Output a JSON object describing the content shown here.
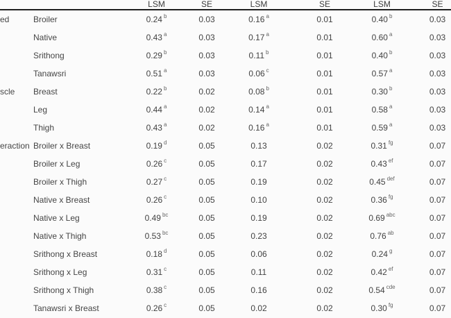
{
  "page": {
    "background": "#fbfbfb",
    "text_color": "#3f3f3f",
    "rule_color": "#1f1f1f"
  },
  "table": {
    "column_headers": [
      "LSM",
      "SE",
      "LSM",
      "SE",
      "LSM",
      "SE"
    ],
    "group_labels_visible_truncated": [
      "ed",
      "scle",
      "eraction"
    ],
    "rows": [
      {
        "group": "ed",
        "item": "Broiler",
        "cells": [
          {
            "v": "0.24",
            "s": "b"
          },
          {
            "v": "0.03"
          },
          {
            "v": "0.16",
            "s": "a"
          },
          {
            "v": "0.01"
          },
          {
            "v": "0.40",
            "s": "b"
          },
          {
            "v": "0.03"
          }
        ]
      },
      {
        "group": "",
        "item": "Native",
        "cells": [
          {
            "v": "0.43",
            "s": "a"
          },
          {
            "v": "0.03"
          },
          {
            "v": "0.17",
            "s": "a"
          },
          {
            "v": "0.01"
          },
          {
            "v": "0.60",
            "s": "a"
          },
          {
            "v": "0.03"
          }
        ]
      },
      {
        "group": "",
        "item": "Srithong",
        "cells": [
          {
            "v": "0.29",
            "s": "b"
          },
          {
            "v": "0.03"
          },
          {
            "v": "0.11",
            "s": "b"
          },
          {
            "v": "0.01"
          },
          {
            "v": "0.40",
            "s": "b"
          },
          {
            "v": "0.03"
          }
        ]
      },
      {
        "group": "",
        "item": "Tanawsri",
        "cells": [
          {
            "v": "0.51",
            "s": "a"
          },
          {
            "v": "0.03"
          },
          {
            "v": "0.06",
            "s": "c"
          },
          {
            "v": "0.01"
          },
          {
            "v": "0.57",
            "s": "a"
          },
          {
            "v": "0.03"
          }
        ]
      },
      {
        "group": "scle",
        "item": "Breast",
        "cells": [
          {
            "v": "0.22",
            "s": "b"
          },
          {
            "v": "0.02"
          },
          {
            "v": "0.08",
            "s": "b"
          },
          {
            "v": "0.01"
          },
          {
            "v": "0.30",
            "s": "b"
          },
          {
            "v": "0.03"
          }
        ]
      },
      {
        "group": "",
        "item": "Leg",
        "cells": [
          {
            "v": "0.44",
            "s": "a"
          },
          {
            "v": "0.02"
          },
          {
            "v": "0.14",
            "s": "a"
          },
          {
            "v": "0.01"
          },
          {
            "v": "0.58",
            "s": "a"
          },
          {
            "v": "0.03"
          }
        ]
      },
      {
        "group": "",
        "item": "Thigh",
        "cells": [
          {
            "v": "0.43",
            "s": "a"
          },
          {
            "v": "0.02"
          },
          {
            "v": "0.16",
            "s": "a"
          },
          {
            "v": "0.01"
          },
          {
            "v": "0.59",
            "s": "a"
          },
          {
            "v": "0.03"
          }
        ]
      },
      {
        "group": "eraction",
        "item": "Broiler x Breast",
        "cells": [
          {
            "v": "0.19",
            "s": "d"
          },
          {
            "v": "0.05"
          },
          {
            "v": "0.13"
          },
          {
            "v": "0.02"
          },
          {
            "v": "0.31",
            "s": "fg"
          },
          {
            "v": "0.07"
          }
        ]
      },
      {
        "group": "",
        "item": "Broiler x Leg",
        "cells": [
          {
            "v": "0.26",
            "s": "c"
          },
          {
            "v": "0.05"
          },
          {
            "v": "0.17"
          },
          {
            "v": "0.02"
          },
          {
            "v": "0.43",
            "s": "ef"
          },
          {
            "v": "0.07"
          }
        ]
      },
      {
        "group": "",
        "item": "Broiler x Thigh",
        "cells": [
          {
            "v": "0.27",
            "s": "c"
          },
          {
            "v": "0.05"
          },
          {
            "v": "0.19"
          },
          {
            "v": "0.02"
          },
          {
            "v": "0.45",
            "s": "def"
          },
          {
            "v": "0.07"
          }
        ]
      },
      {
        "group": "",
        "item": "Native x Breast",
        "cells": [
          {
            "v": "0.26",
            "s": "c"
          },
          {
            "v": "0.05"
          },
          {
            "v": "0.10"
          },
          {
            "v": "0.02"
          },
          {
            "v": "0.36",
            "s": "fg"
          },
          {
            "v": "0.07"
          }
        ]
      },
      {
        "group": "",
        "item": "Native x Leg",
        "cells": [
          {
            "v": "0.49",
            "s": "bc"
          },
          {
            "v": "0.05"
          },
          {
            "v": "0.19"
          },
          {
            "v": "0.02"
          },
          {
            "v": "0.69",
            "s": "abc"
          },
          {
            "v": "0.07"
          }
        ]
      },
      {
        "group": "",
        "item": "Native x Thigh",
        "cells": [
          {
            "v": "0.53",
            "s": "bc"
          },
          {
            "v": "0.05"
          },
          {
            "v": "0.23"
          },
          {
            "v": "0.02"
          },
          {
            "v": "0.76",
            "s": "ab"
          },
          {
            "v": "0.07"
          }
        ]
      },
      {
        "group": "",
        "item": "Srithong x Breast",
        "cells": [
          {
            "v": "0.18",
            "s": "d"
          },
          {
            "v": "0.05"
          },
          {
            "v": "0.06"
          },
          {
            "v": "0.02"
          },
          {
            "v": "0.24",
            "s": "g"
          },
          {
            "v": "0.07"
          }
        ]
      },
      {
        "group": "",
        "item": "Srithong x Leg",
        "cells": [
          {
            "v": "0.31",
            "s": "c"
          },
          {
            "v": "0.05"
          },
          {
            "v": "0.11"
          },
          {
            "v": "0.02"
          },
          {
            "v": "0.42",
            "s": "ef"
          },
          {
            "v": "0.07"
          }
        ]
      },
      {
        "group": "",
        "item": "Srithong x Thigh",
        "cells": [
          {
            "v": "0.38",
            "s": "c"
          },
          {
            "v": "0.05"
          },
          {
            "v": "0.16"
          },
          {
            "v": "0.02"
          },
          {
            "v": "0.54",
            "s": "cde"
          },
          {
            "v": "0.07"
          }
        ]
      },
      {
        "group": "",
        "item": "Tanawsri x Breast",
        "cells": [
          {
            "v": "0.26",
            "s": "c"
          },
          {
            "v": "0.05"
          },
          {
            "v": "0.02"
          },
          {
            "v": "0.02"
          },
          {
            "v": "0.30",
            "s": "fg"
          },
          {
            "v": "0.07"
          }
        ]
      }
    ]
  }
}
